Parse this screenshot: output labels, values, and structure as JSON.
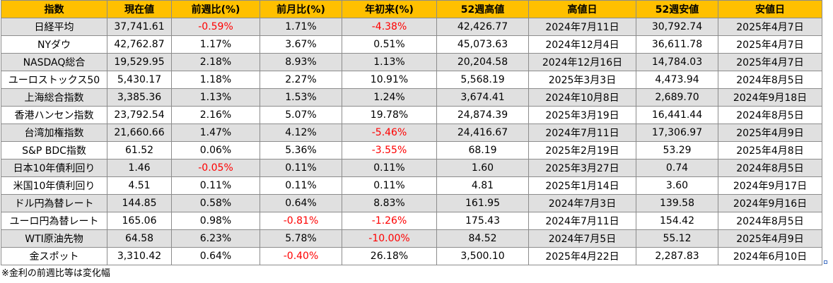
{
  "headers": [
    "指数",
    "現在値",
    "前週比(%)",
    "前月比(%)",
    "年初来(%)",
    "52週高値",
    "高値日",
    "52週安値",
    "安値日"
  ],
  "rows": [
    {
      "name": "日経平均",
      "current": "37,741.61",
      "wow": "-0.59%",
      "mom": "1.71%",
      "ytd": "-4.38%",
      "high52": "42,426.77",
      "high_date": "2024年7月11日",
      "low52": "30,792.74",
      "low_date": "2025年4月7日"
    },
    {
      "name": "NYダウ",
      "current": "42,762.87",
      "wow": "1.17%",
      "mom": "3.67%",
      "ytd": "0.51%",
      "high52": "45,073.63",
      "high_date": "2024年12月4日",
      "low52": "36,611.78",
      "low_date": "2025年4月7日"
    },
    {
      "name": "NASDAQ総合",
      "current": "19,529.95",
      "wow": "2.18%",
      "mom": "8.93%",
      "ytd": "1.13%",
      "high52": "20,204.58",
      "high_date": "2024年12月16日",
      "low52": "14,784.03",
      "low_date": "2025年4月7日"
    },
    {
      "name": "ユーロストックス50",
      "current": "5,430.17",
      "wow": "1.18%",
      "mom": "2.27%",
      "ytd": "10.91%",
      "high52": "5,568.19",
      "high_date": "2025年3月3日",
      "low52": "4,473.94",
      "low_date": "2024年8月5日"
    },
    {
      "name": "上海総合指数",
      "current": "3,385.36",
      "wow": "1.13%",
      "mom": "1.53%",
      "ytd": "1.24%",
      "high52": "3,674.41",
      "high_date": "2024年10月8日",
      "low52": "2,689.70",
      "low_date": "2024年9月18日"
    },
    {
      "name": "香港ハンセン指数",
      "current": "23,792.54",
      "wow": "2.16%",
      "mom": "5.07%",
      "ytd": "19.78%",
      "high52": "24,874.39",
      "high_date": "2025年3月19日",
      "low52": "16,441.44",
      "low_date": "2024年8月5日"
    },
    {
      "name": "台湾加権指数",
      "current": "21,660.66",
      "wow": "1.47%",
      "mom": "4.12%",
      "ytd": "-5.46%",
      "high52": "24,416.67",
      "high_date": "2024年7月11日",
      "low52": "17,306.97",
      "low_date": "2025年4月9日"
    },
    {
      "name": "S&P BDC指数",
      "current": "61.52",
      "wow": "0.06%",
      "mom": "5.36%",
      "ytd": "-3.55%",
      "high52": "68.19",
      "high_date": "2025年2月19日",
      "low52": "53.29",
      "low_date": "2025年4月8日"
    },
    {
      "name": "日本10年債利回り",
      "current": "1.46",
      "wow": "-0.05%",
      "mom": "0.11%",
      "ytd": "0.11%",
      "high52": "1.60",
      "high_date": "2025年3月27日",
      "low52": "0.74",
      "low_date": "2024年8月5日"
    },
    {
      "name": "米国10年債利回り",
      "current": "4.51",
      "wow": "0.11%",
      "mom": "0.11%",
      "ytd": "0.11%",
      "high52": "4.81",
      "high_date": "2025年1月14日",
      "low52": "3.60",
      "low_date": "2024年9月17日"
    },
    {
      "name": "ドル円為替レート",
      "current": "144.85",
      "wow": "0.58%",
      "mom": "0.64%",
      "ytd": "8.83%",
      "high52": "161.95",
      "high_date": "2024年7月3日",
      "low52": "139.58",
      "low_date": "2024年9月16日"
    },
    {
      "name": "ユーロ円為替レート",
      "current": "165.06",
      "wow": "0.98%",
      "mom": "-0.81%",
      "ytd": "-1.26%",
      "high52": "175.43",
      "high_date": "2024年7月11日",
      "low52": "154.42",
      "low_date": "2024年8月5日"
    },
    {
      "name": "WTI原油先物",
      "current": "64.58",
      "wow": "6.23%",
      "mom": "5.78%",
      "ytd": "-10.00%",
      "high52": "84.52",
      "high_date": "2024年7月5日",
      "low52": "55.12",
      "low_date": "2025年4月9日"
    },
    {
      "name": "金スポット",
      "current": "3,310.42",
      "wow": "0.64%",
      "mom": "-0.40%",
      "ytd": "26.18%",
      "high52": "3,500.10",
      "high_date": "2025年4月22日",
      "low52": "2,287.83",
      "low_date": "2024年6月10日"
    }
  ],
  "footnote": "※金利の前週比等は変化幅",
  "colors": {
    "header_bg": "#ffc000",
    "band_bg": "#e0e0e0",
    "negative_text": "#ff0000",
    "grid_line": "#8c8c8c"
  }
}
